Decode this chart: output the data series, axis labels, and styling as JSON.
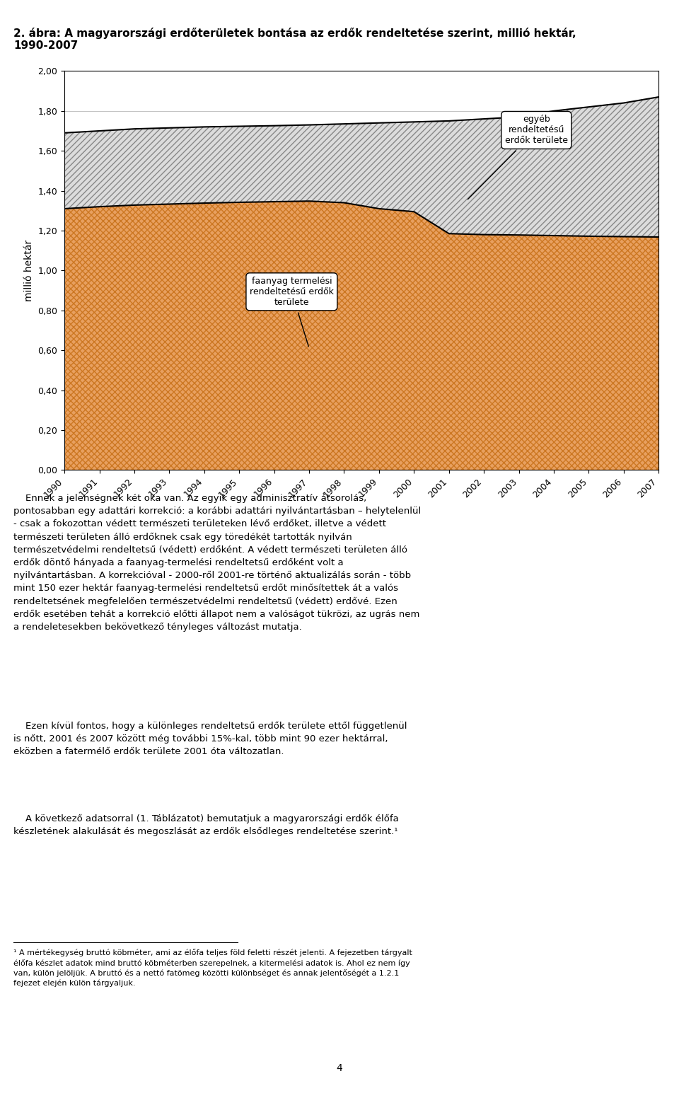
{
  "title_line1": "2. ábra: A magyarországi erdőterületek bontása az erdők rendeltetése szerint, millió hektár,",
  "title_line2": "1990-2007",
  "ylabel": "millió hektár",
  "years": [
    1990,
    1991,
    1992,
    1993,
    1994,
    1995,
    1996,
    1997,
    1998,
    1999,
    2000,
    2001,
    2002,
    2003,
    2004,
    2005,
    2006,
    2007
  ],
  "faanyag": [
    1.31,
    1.32,
    1.328,
    1.333,
    1.338,
    1.342,
    1.345,
    1.348,
    1.34,
    1.31,
    1.295,
    1.185,
    1.18,
    1.178,
    1.175,
    1.172,
    1.17,
    1.168
  ],
  "egyeb_total": [
    1.69,
    1.7,
    1.71,
    1.715,
    1.72,
    1.723,
    1.726,
    1.73,
    1.735,
    1.74,
    1.745,
    1.75,
    1.76,
    1.77,
    1.8,
    1.82,
    1.84,
    1.87
  ],
  "ylim_min": 0.0,
  "ylim_max": 2.0,
  "yticks": [
    0.0,
    0.2,
    0.4,
    0.6,
    0.8,
    1.0,
    1.2,
    1.4,
    1.6,
    1.8,
    2.0
  ],
  "faanyag_color": "#E8A060",
  "egyeb_color": "#D0D0D0",
  "label_faanyag": "faanyag termelési\nrendeltetsű erdők\nterülete",
  "label_egyeb": "egyéb\nrendeltetsű\nerdők területe",
  "body_text": "    Ennek a jelenségnek két oka van. Az egyik egy adminisztratív átsorolás,\npontosabban egy adattári korrekció: a korábbi adattári nyilvántartásban – helytelenlül\n- csak a fokozottan védett természeti területeken lévő erdőket, illetve a védett\ntermészeti területen álló erdőknek csak egy töredékét tartották nyilván\ntermészetvédelmi rendeltetsű (védett) erdőként. A védett természeti területen álló\nerdők döntő hányada a faanyag-termelési rendeltetsű erdőként volt a\nnyilvántartásban. A korrekcióval - 2000-ről 2001-re történő aktualizálás során - több\nmint 150 ezer hektár faanyag-termelési rendeltetsű erdőt minősítettek át a valós\nrendeltetsének megfelelően természetvédelmi rendeltetsű (védett) erdővé. Ezen\nerdők esetében tehát a korrekció előtti állapot nem a valóságot tükrözi, az ugrás nem\na rendeletesekben bekövetkező tényleges változást mutatja.",
  "body_text2": "    Ezen kívül fontos, hogy a különleges rendeltetsű erdők területe ettől függetlenül\nis nőtt, 2001 és 2007 között még további 15%-kal, több mint 90 ezer hektárral,\neközben a fatermélő erdők területe 2001 óta változatlan.",
  "body_text3": "    A következő adatsorral (1. Táblázatot) bemutatjuk a magyarországi erdők élőfa\nkészletének alakulását és megoszlását az erdők elsődleges rendeltetése szerint.¹",
  "footnote": "¹ A mértékegység bruttó köbméter, ami az élőfa teljes föld feletti részét jelenti. A fejezetben tárgyalt\nélőfa készlet adatok mind bruttó köbméterben szerepelnek, a kitermelési adatok is. Ahol ez nem így\nvan, külön jelöljük. A bruttó és a nettó fatömeg közötti különbséget és annak jelentőségét a 1.2.1\nfejezet elején külön tárgyaljuk.",
  "page_number": "4"
}
